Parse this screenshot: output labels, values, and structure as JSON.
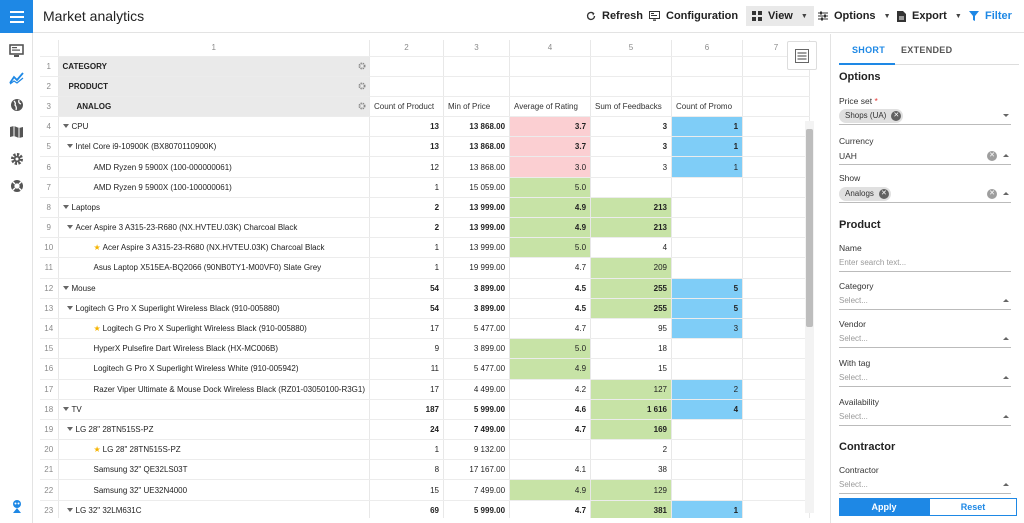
{
  "header": {
    "title": "Market analytics",
    "toolbar": {
      "refresh": "Refresh",
      "configuration": "Configuration",
      "view": "View",
      "options": "Options",
      "export": "Export",
      "filter": "Filter"
    }
  },
  "grid": {
    "col_numbers": [
      "1",
      "2",
      "3",
      "4",
      "5",
      "6",
      "7"
    ],
    "config_rows": [
      {
        "n": "1",
        "label": "CATEGORY"
      },
      {
        "n": "2",
        "label": "PRODUCT"
      },
      {
        "n": "3",
        "label": "ANALOG"
      }
    ],
    "columns": [
      "Count of Product",
      "Min of Price",
      "Average of Rating",
      "Sum of Feedbacks",
      "Count of Promo"
    ],
    "rows": [
      {
        "n": "4",
        "label": "CPU",
        "level": 0,
        "expand": true,
        "bold": true,
        "star": false,
        "c": [
          "13",
          "13 868.00",
          "3.7",
          "3",
          "1"
        ],
        "bg": [
          "",
          "",
          "red",
          "",
          "blue"
        ]
      },
      {
        "n": "5",
        "label": "Intel Core i9-10900K (BX8070110900K)",
        "level": 1,
        "expand": true,
        "bold": true,
        "star": false,
        "c": [
          "13",
          "13 868.00",
          "3.7",
          "3",
          "1"
        ],
        "bg": [
          "",
          "",
          "red",
          "",
          "blue"
        ]
      },
      {
        "n": "6",
        "label": "AMD Ryzen 9 5900X (100-000000061)",
        "level": 2,
        "expand": false,
        "bold": false,
        "star": false,
        "c": [
          "12",
          "13 868.00",
          "3.0",
          "3",
          "1"
        ],
        "bg": [
          "",
          "",
          "red",
          "",
          "blue"
        ]
      },
      {
        "n": "7",
        "label": "AMD Ryzen 9 5900X (100-100000061)",
        "level": 2,
        "expand": false,
        "bold": false,
        "star": false,
        "c": [
          "1",
          "15 059.00",
          "5.0",
          "",
          ""
        ],
        "bg": [
          "",
          "",
          "green",
          "",
          ""
        ]
      },
      {
        "n": "8",
        "label": "Laptops",
        "level": 0,
        "expand": true,
        "bold": true,
        "star": false,
        "c": [
          "2",
          "13 999.00",
          "4.9",
          "213",
          ""
        ],
        "bg": [
          "",
          "",
          "green",
          "green",
          ""
        ]
      },
      {
        "n": "9",
        "label": "Acer Aspire 3 A315-23-R680 (NX.HVTEU.03K) Charcoal Black",
        "level": 1,
        "expand": true,
        "bold": true,
        "star": false,
        "c": [
          "2",
          "13 999.00",
          "4.9",
          "213",
          ""
        ],
        "bg": [
          "",
          "",
          "green",
          "green",
          ""
        ]
      },
      {
        "n": "10",
        "label": "Acer Aspire 3 A315-23-R680 (NX.HVTEU.03K) Charcoal Black",
        "level": 2,
        "expand": false,
        "bold": false,
        "star": true,
        "c": [
          "1",
          "13 999.00",
          "5.0",
          "4",
          ""
        ],
        "bg": [
          "",
          "",
          "green",
          "",
          ""
        ]
      },
      {
        "n": "11",
        "label": "Asus Laptop X515EA-BQ2066 (90NB0TY1-M00VF0) Slate Grey",
        "level": 2,
        "expand": false,
        "bold": false,
        "star": false,
        "c": [
          "1",
          "19 999.00",
          "4.7",
          "209",
          ""
        ],
        "bg": [
          "",
          "",
          "",
          "green",
          ""
        ]
      },
      {
        "n": "12",
        "label": "Mouse",
        "level": 0,
        "expand": true,
        "bold": true,
        "star": false,
        "c": [
          "54",
          "3 899.00",
          "4.5",
          "255",
          "5"
        ],
        "bg": [
          "",
          "",
          "",
          "green",
          "blue"
        ]
      },
      {
        "n": "13",
        "label": "Logitech G Pro X Superlight Wireless Black (910-005880)",
        "level": 1,
        "expand": true,
        "bold": true,
        "star": false,
        "c": [
          "54",
          "3 899.00",
          "4.5",
          "255",
          "5"
        ],
        "bg": [
          "",
          "",
          "",
          "green",
          "blue"
        ]
      },
      {
        "n": "14",
        "label": "Logitech G Pro X Superlight Wireless Black (910-005880)",
        "level": 2,
        "expand": false,
        "bold": false,
        "star": true,
        "c": [
          "17",
          "5 477.00",
          "4.7",
          "95",
          "3"
        ],
        "bg": [
          "",
          "",
          "",
          "",
          "blue"
        ]
      },
      {
        "n": "15",
        "label": "HyperX Pulsefire Dart Wireless Black (HX-MC006B)",
        "level": 2,
        "expand": false,
        "bold": false,
        "star": false,
        "c": [
          "9",
          "3 899.00",
          "5.0",
          "18",
          ""
        ],
        "bg": [
          "",
          "",
          "green",
          "",
          ""
        ]
      },
      {
        "n": "16",
        "label": "Logitech G Pro X Superlight Wireless White (910-005942)",
        "level": 2,
        "expand": false,
        "bold": false,
        "star": false,
        "c": [
          "11",
          "5 477.00",
          "4.9",
          "15",
          ""
        ],
        "bg": [
          "",
          "",
          "green",
          "",
          ""
        ]
      },
      {
        "n": "17",
        "label": "Razer Viper Ultimate & Mouse Dock Wireless Black (RZ01-03050100-R3G1)",
        "level": 2,
        "expand": false,
        "bold": false,
        "star": false,
        "c": [
          "17",
          "4 499.00",
          "4.2",
          "127",
          "2"
        ],
        "bg": [
          "",
          "",
          "",
          "green",
          "blue"
        ]
      },
      {
        "n": "18",
        "label": "TV",
        "level": 0,
        "expand": true,
        "bold": true,
        "star": false,
        "c": [
          "187",
          "5 999.00",
          "4.6",
          "1 616",
          "4"
        ],
        "bg": [
          "",
          "",
          "",
          "green",
          "blue"
        ]
      },
      {
        "n": "19",
        "label": "LG 28\" 28TN515S-PZ",
        "level": 1,
        "expand": true,
        "bold": true,
        "star": false,
        "c": [
          "24",
          "7 499.00",
          "4.7",
          "169",
          ""
        ],
        "bg": [
          "",
          "",
          "",
          "green",
          ""
        ]
      },
      {
        "n": "20",
        "label": "LG 28\" 28TN515S-PZ",
        "level": 2,
        "expand": false,
        "bold": false,
        "star": true,
        "c": [
          "1",
          "9 132.00",
          "",
          "2",
          ""
        ],
        "bg": [
          "",
          "",
          "",
          "",
          ""
        ]
      },
      {
        "n": "21",
        "label": "Samsung 32\" QE32LS03T",
        "level": 2,
        "expand": false,
        "bold": false,
        "star": false,
        "c": [
          "8",
          "17 167.00",
          "4.1",
          "38",
          ""
        ],
        "bg": [
          "",
          "",
          "",
          "",
          ""
        ]
      },
      {
        "n": "22",
        "label": "Samsung 32\" UE32N4000",
        "level": 2,
        "expand": false,
        "bold": false,
        "star": false,
        "c": [
          "15",
          "7 499.00",
          "4.9",
          "129",
          ""
        ],
        "bg": [
          "",
          "",
          "green",
          "green",
          ""
        ]
      },
      {
        "n": "23",
        "label": "LG 32\" 32LM631C",
        "level": 1,
        "expand": true,
        "bold": true,
        "star": false,
        "c": [
          "69",
          "5 999.00",
          "4.7",
          "381",
          "1"
        ],
        "bg": [
          "",
          "",
          "",
          "green",
          "blue"
        ]
      }
    ]
  },
  "panel": {
    "tabs": [
      "SHORT",
      "EXTENDED"
    ],
    "options_title": "Options",
    "price_set_label": "Price set",
    "price_set_required": "*",
    "price_set_value": "Shops (UA)",
    "currency_label": "Currency",
    "currency_value": "UAH",
    "show_label": "Show",
    "show_value": "Analogs",
    "product_title": "Product",
    "name_label": "Name",
    "name_placeholder": "Enter search text...",
    "category_label": "Category",
    "vendor_label": "Vendor",
    "tag_label": "With tag",
    "availability_label": "Availability",
    "select_placeholder": "Select...",
    "contractor_title": "Contractor",
    "contractor_label": "Contractor",
    "apply": "Apply",
    "reset": "Reset"
  },
  "colors": {
    "accent": "#1e88e5",
    "red": "#fbcfd2",
    "green": "#c7e3a6",
    "blue": "#7fcdf7"
  }
}
